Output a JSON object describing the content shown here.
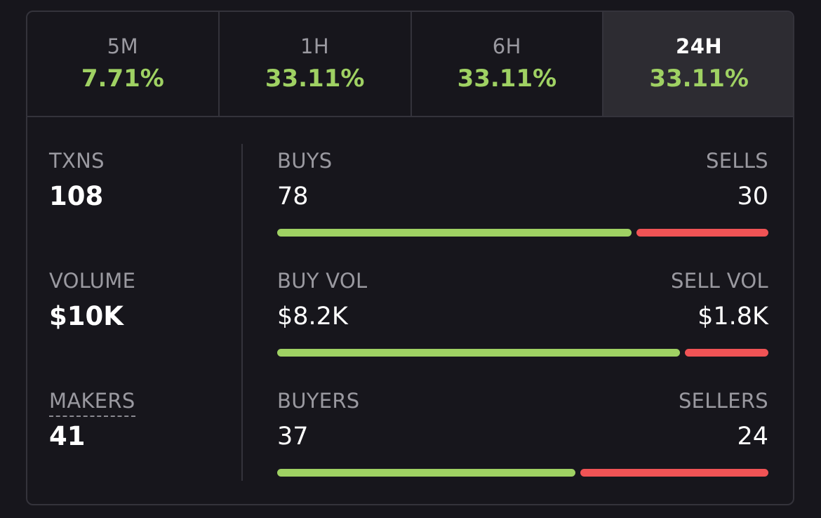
{
  "tabs": [
    {
      "label": "5M",
      "value": "7.71%",
      "active": false
    },
    {
      "label": "1H",
      "value": "33.11%",
      "active": false
    },
    {
      "label": "6H",
      "value": "33.11%",
      "active": false
    },
    {
      "label": "24H",
      "value": "33.11%",
      "active": true
    }
  ],
  "stats": {
    "txns": {
      "label": "TXNS",
      "value": "108"
    },
    "volume": {
      "label": "VOLUME",
      "value": "$10K"
    },
    "makers": {
      "label": "MAKERS",
      "value": "41"
    }
  },
  "rows": {
    "trades": {
      "left_label": "BUYS",
      "right_label": "SELLS",
      "left_value": "78",
      "right_value": "30",
      "buy_fraction": 0.722
    },
    "volume": {
      "left_label": "BUY VOL",
      "right_label": "SELL VOL",
      "left_value": "$8.2K",
      "right_value": "$1.8K",
      "buy_fraction": 0.82
    },
    "traders": {
      "left_label": "BUYERS",
      "right_label": "SELLERS",
      "left_value": "37",
      "right_value": "24",
      "buy_fraction": 0.607
    }
  },
  "colors": {
    "positive": "#9fd163",
    "negative": "#f05355",
    "background": "#17161c",
    "active_tab": "#2d2c32"
  }
}
